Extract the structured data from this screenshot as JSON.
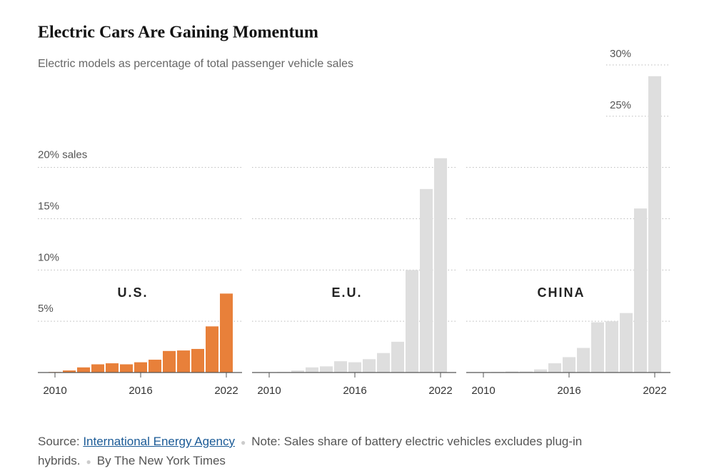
{
  "title": "Electric Cars Are Gaining Momentum",
  "subtitle": "Electric models as percentage of total passenger vehicle sales",
  "ylim": [
    0,
    30
  ],
  "yticks": [
    {
      "value": 5,
      "label": "5%"
    },
    {
      "value": 10,
      "label": "10%"
    },
    {
      "value": 15,
      "label": "15%"
    },
    {
      "value": 20,
      "label": "20% sales"
    }
  ],
  "chart_data": [
    {
      "type": "bar",
      "title": "U.S.",
      "color": "#e8803a",
      "x": [
        2010,
        2011,
        2012,
        2013,
        2014,
        2015,
        2016,
        2017,
        2018,
        2019,
        2020,
        2021,
        2022
      ],
      "values": [
        0.05,
        0.2,
        0.5,
        0.8,
        0.9,
        0.8,
        1.0,
        1.25,
        2.1,
        2.15,
        2.3,
        4.5,
        7.7
      ],
      "xticks": [
        2010,
        2016,
        2022
      ]
    },
    {
      "type": "bar",
      "title": "E.U.",
      "color": "#dedede",
      "x": [
        2010,
        2011,
        2012,
        2013,
        2014,
        2015,
        2016,
        2017,
        2018,
        2019,
        2020,
        2021,
        2022
      ],
      "values": [
        0.02,
        0.05,
        0.2,
        0.5,
        0.6,
        1.1,
        1.0,
        1.3,
        1.9,
        3.0,
        10.0,
        17.9,
        20.9
      ],
      "xticks": [
        2010,
        2016,
        2022
      ]
    },
    {
      "type": "bar",
      "title": "CHINA",
      "color": "#dedede",
      "x": [
        2010,
        2011,
        2012,
        2013,
        2014,
        2015,
        2016,
        2017,
        2018,
        2019,
        2020,
        2021,
        2022
      ],
      "values": [
        0.02,
        0.05,
        0.1,
        0.1,
        0.3,
        0.9,
        1.5,
        2.4,
        4.9,
        5.0,
        5.8,
        16.0,
        28.9
      ],
      "xticks": [
        2010,
        2016,
        2022
      ],
      "yticks": [
        {
          "value": 25,
          "label": "25%"
        },
        {
          "value": 30,
          "label": "30%"
        }
      ]
    }
  ],
  "footer": {
    "source_label": "Source:",
    "source_link": "International Energy Agency",
    "note": "Note: Sales share of battery electric vehicles excludes plug-in hybrids.",
    "byline": "By The New York Times"
  }
}
